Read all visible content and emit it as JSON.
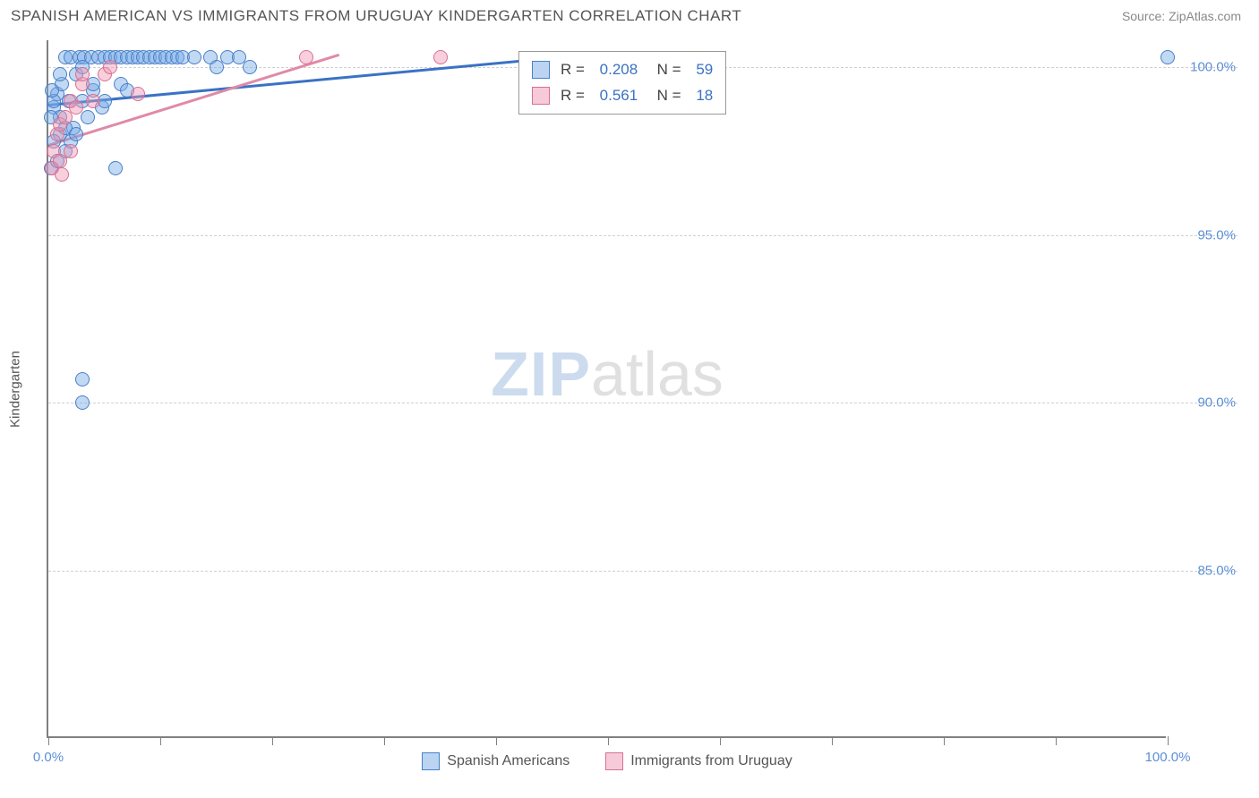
{
  "header": {
    "title": "SPANISH AMERICAN VS IMMIGRANTS FROM URUGUAY KINDERGARTEN CORRELATION CHART",
    "source": "Source: ZipAtlas.com"
  },
  "watermark": {
    "part1": "ZIP",
    "part2": "atlas"
  },
  "chart": {
    "type": "scatter",
    "ylabel": "Kindergarten",
    "xlim": [
      0,
      100
    ],
    "ylim": [
      80,
      100.8
    ],
    "xticks": [
      0,
      10,
      20,
      30,
      40,
      50,
      60,
      70,
      80,
      90,
      100
    ],
    "xtick_labels": {
      "0": "0.0%",
      "100": "100.0%"
    },
    "yticks": [
      85,
      90,
      95,
      100
    ],
    "ytick_labels": {
      "85": "85.0%",
      "90": "90.0%",
      "95": "95.0%",
      "100": "100.0%"
    },
    "grid_color": "#d0d0d0",
    "axis_color": "#808080",
    "background_color": "#ffffff",
    "marker_size": 16,
    "series": [
      {
        "name": "Spanish Americans",
        "color_fill": "rgba(120,170,230,0.45)",
        "color_stroke": "#4a7fc7",
        "trend_color": "#3a72c4",
        "R": "0.208",
        "N": "59",
        "trend": {
          "x1": 0,
          "y1": 98.9,
          "x2": 45,
          "y2": 100.3
        },
        "points": [
          [
            0.5,
            98.8
          ],
          [
            0.8,
            99.2
          ],
          [
            1.0,
            98.5
          ],
          [
            1.2,
            99.5
          ],
          [
            1.5,
            100.3
          ],
          [
            1.8,
            99.0
          ],
          [
            2.0,
            100.3
          ],
          [
            2.2,
            98.2
          ],
          [
            2.5,
            99.8
          ],
          [
            2.8,
            100.3
          ],
          [
            3.0,
            99.0
          ],
          [
            3.2,
            100.3
          ],
          [
            3.5,
            98.5
          ],
          [
            3.8,
            100.3
          ],
          [
            4.0,
            99.3
          ],
          [
            4.5,
            100.3
          ],
          [
            4.8,
            98.8
          ],
          [
            5.0,
            100.3
          ],
          [
            5.5,
            100.3
          ],
          [
            6.0,
            97.0
          ],
          [
            6.0,
            100.3
          ],
          [
            6.5,
            100.3
          ],
          [
            7.0,
            100.3
          ],
          [
            7.5,
            100.3
          ],
          [
            8.0,
            100.3
          ],
          [
            8.5,
            100.3
          ],
          [
            9.0,
            100.3
          ],
          [
            9.5,
            100.3
          ],
          [
            10.0,
            100.3
          ],
          [
            10.5,
            100.3
          ],
          [
            11.0,
            100.3
          ],
          [
            11.5,
            100.3
          ],
          [
            12.0,
            100.3
          ],
          [
            13.0,
            100.3
          ],
          [
            14.5,
            100.3
          ],
          [
            15.0,
            100.0
          ],
          [
            16.0,
            100.3
          ],
          [
            17.0,
            100.3
          ],
          [
            18.0,
            100.0
          ],
          [
            1.5,
            97.5
          ],
          [
            2.0,
            97.8
          ],
          [
            0.2,
            98.5
          ],
          [
            0.5,
            99.0
          ],
          [
            1.0,
            99.8
          ],
          [
            3.0,
            90.7
          ],
          [
            3.0,
            90.0
          ],
          [
            4.0,
            99.5
          ],
          [
            5.0,
            99.0
          ],
          [
            1.0,
            98.0
          ],
          [
            0.2,
            97.0
          ],
          [
            0.8,
            97.2
          ],
          [
            0.5,
            97.8
          ],
          [
            1.5,
            98.2
          ],
          [
            6.5,
            99.5
          ],
          [
            7.0,
            99.3
          ],
          [
            3.0,
            100.0
          ],
          [
            0.3,
            99.3
          ],
          [
            2.5,
            98.0
          ],
          [
            100.0,
            100.3
          ]
        ]
      },
      {
        "name": "Immigrants from Uruguay",
        "color_fill": "rgba(240,150,180,0.45)",
        "color_stroke": "#d87090",
        "trend_color": "#e08aa6",
        "R": "0.561",
        "N": "18",
        "trend": {
          "x1": 0,
          "y1": 97.7,
          "x2": 26,
          "y2": 100.4
        },
        "points": [
          [
            0.3,
            97.0
          ],
          [
            0.5,
            97.5
          ],
          [
            0.8,
            98.0
          ],
          [
            1.0,
            98.3
          ],
          [
            1.0,
            97.2
          ],
          [
            1.5,
            98.5
          ],
          [
            2.0,
            97.5
          ],
          [
            2.0,
            99.0
          ],
          [
            2.5,
            98.8
          ],
          [
            3.0,
            99.5
          ],
          [
            3.0,
            99.8
          ],
          [
            4.0,
            99.0
          ],
          [
            5.0,
            99.8
          ],
          [
            5.5,
            100.0
          ],
          [
            8.0,
            99.2
          ],
          [
            23.0,
            100.3
          ],
          [
            35.0,
            100.3
          ],
          [
            1.2,
            96.8
          ]
        ]
      }
    ],
    "stats_box": {
      "left_pct": 42,
      "top_pct": 1.5
    },
    "legend_bottom": [
      {
        "swatch": "blue",
        "label": "Spanish Americans"
      },
      {
        "swatch": "pink",
        "label": "Immigrants from Uruguay"
      }
    ]
  }
}
